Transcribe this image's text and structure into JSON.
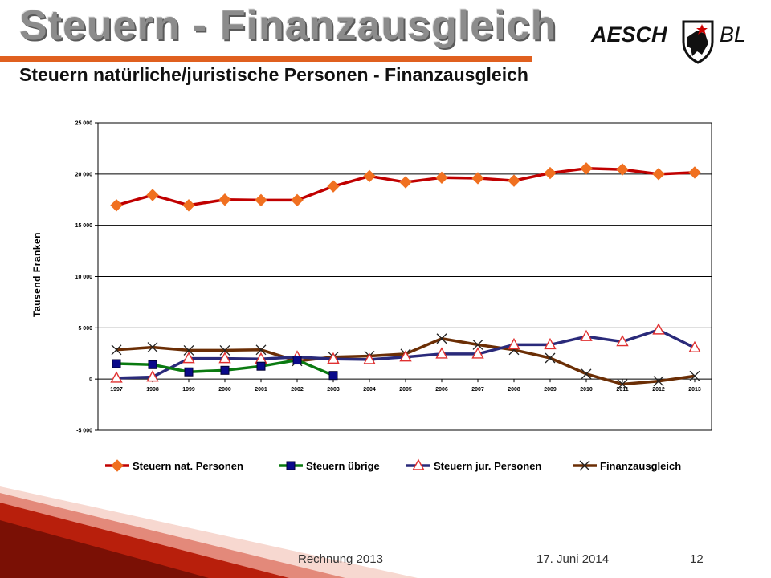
{
  "header": {
    "title": "Steuern - Finanzausgleich",
    "subtitle": "Steuern natürliche/juristische Personen - Finanzausgleich",
    "logo": {
      "left": "AESCH",
      "right": "BL",
      "crest_icon": "aesch-crest-icon"
    }
  },
  "colors": {
    "accent": "#e0601f"
  },
  "footer": {
    "left": "Rechnung 2013",
    "date": "17. Juni 2014",
    "page": "12"
  },
  "chart_data": {
    "type": "line",
    "title": "",
    "xlabel": "",
    "ylabel": "Tausend Franken",
    "categories": [
      "1997",
      "1998",
      "1999",
      "2000",
      "2001",
      "2002",
      "2003",
      "2004",
      "2005",
      "2006",
      "2007",
      "2008",
      "2009",
      "2010",
      "2011",
      "2012",
      "2013"
    ],
    "ylim": [
      -5000,
      25000
    ],
    "yticks": [
      -5000,
      0,
      5000,
      10000,
      15000,
      20000,
      25000
    ],
    "ytick_labels": [
      "-5 000",
      "0",
      "5 000",
      "10 000",
      "15 000",
      "20 000",
      "25 000"
    ],
    "grid": true,
    "legend": "bottom",
    "series": [
      {
        "name": "Steuern nat. Personen",
        "color": "#c00000",
        "marker": "diamond",
        "markerColor": "#f07020",
        "values": [
          16950,
          17950,
          16950,
          17500,
          17450,
          17450,
          18800,
          19800,
          19200,
          19650,
          19600,
          19350,
          20100,
          20550,
          20450,
          20000,
          20150
        ]
      },
      {
        "name": "Steuern übrige",
        "color": "#0a7a10",
        "marker": "square",
        "markerColor": "#0a0a8a",
        "values": [
          1500,
          1400,
          700,
          850,
          1250,
          1850,
          350,
          null,
          null,
          null,
          null,
          null,
          null,
          null,
          null,
          null,
          null
        ]
      },
      {
        "name": "Steuern jur. Personen",
        "color": "#2a2a7a",
        "marker": "triangle",
        "markerColor": "#ffffff",
        "values": [
          100,
          200,
          2000,
          2000,
          1950,
          2150,
          1950,
          1900,
          2150,
          2450,
          2450,
          3350,
          3350,
          4150,
          3650,
          4800,
          3050
        ]
      },
      {
        "name": "Finanzausgleich",
        "color": "#6b2e05",
        "marker": "x",
        "markerColor": "#222222",
        "values": [
          2850,
          3100,
          2800,
          2800,
          2850,
          1750,
          2150,
          2250,
          2450,
          3950,
          3350,
          2850,
          2050,
          500,
          -500,
          -200,
          300
        ]
      }
    ]
  }
}
